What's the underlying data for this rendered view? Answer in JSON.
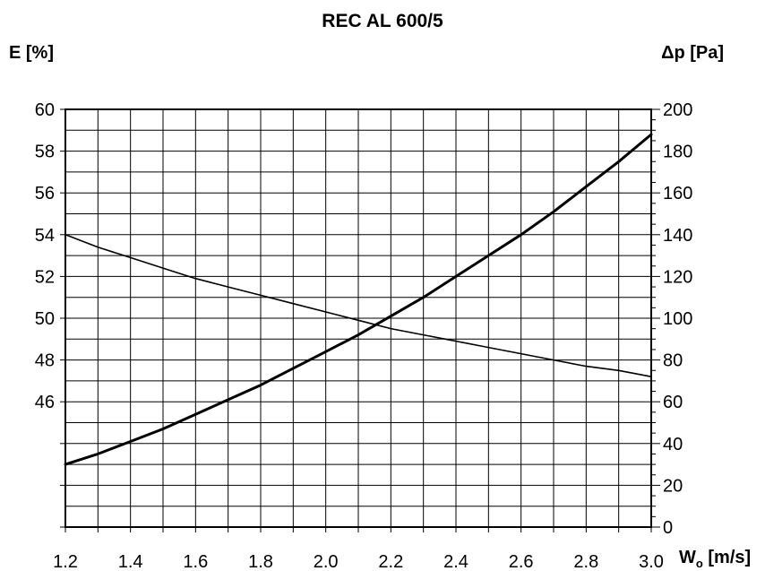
{
  "chart_data": {
    "type": "line",
    "title": "REC AL 600/5",
    "ylabel_left": "E [%]",
    "ylabel_right": "Δp [Pa]",
    "xlabel": {
      "main": "W",
      "sub": "o",
      "unit": " [m/s]"
    },
    "x_ticks": [
      "1.2",
      "1.4",
      "1.6",
      "1.8",
      "2.0",
      "2.2",
      "2.4",
      "2.6",
      "2.8",
      "3.0"
    ],
    "y_left_ticks": [
      "60",
      "58",
      "56",
      "54",
      "52",
      "50",
      "48",
      "46"
    ],
    "y_right_ticks": [
      "200",
      "180",
      "160",
      "140",
      "120",
      "100",
      "80",
      "60",
      "40",
      "20",
      "0"
    ],
    "xlim": [
      1.2,
      3.0
    ],
    "ylim_left": [
      40,
      60
    ],
    "ylim_right": [
      0,
      200
    ],
    "grid": true,
    "series": [
      {
        "axis": "left",
        "x": [
          1.2,
          1.3,
          1.4,
          1.5,
          1.6,
          1.7,
          1.8,
          1.9,
          2.0,
          2.1,
          2.2,
          2.3,
          2.4,
          2.5,
          2.6,
          2.7,
          2.8,
          2.9,
          3.0
        ],
        "values": [
          54.0,
          53.4,
          52.9,
          52.4,
          51.9,
          51.5,
          51.1,
          50.7,
          50.3,
          49.9,
          49.5,
          49.2,
          48.9,
          48.6,
          48.3,
          48.0,
          47.7,
          47.5,
          47.2
        ]
      },
      {
        "axis": "right",
        "x": [
          1.2,
          1.3,
          1.4,
          1.5,
          1.6,
          1.7,
          1.8,
          1.9,
          2.0,
          2.1,
          2.2,
          2.3,
          2.4,
          2.5,
          2.6,
          2.7,
          2.8,
          2.9,
          3.0
        ],
        "values": [
          30,
          35,
          41,
          47,
          54,
          61,
          68,
          76,
          84,
          92,
          101,
          110,
          120,
          130,
          140,
          151,
          163,
          175,
          188
        ]
      }
    ]
  }
}
